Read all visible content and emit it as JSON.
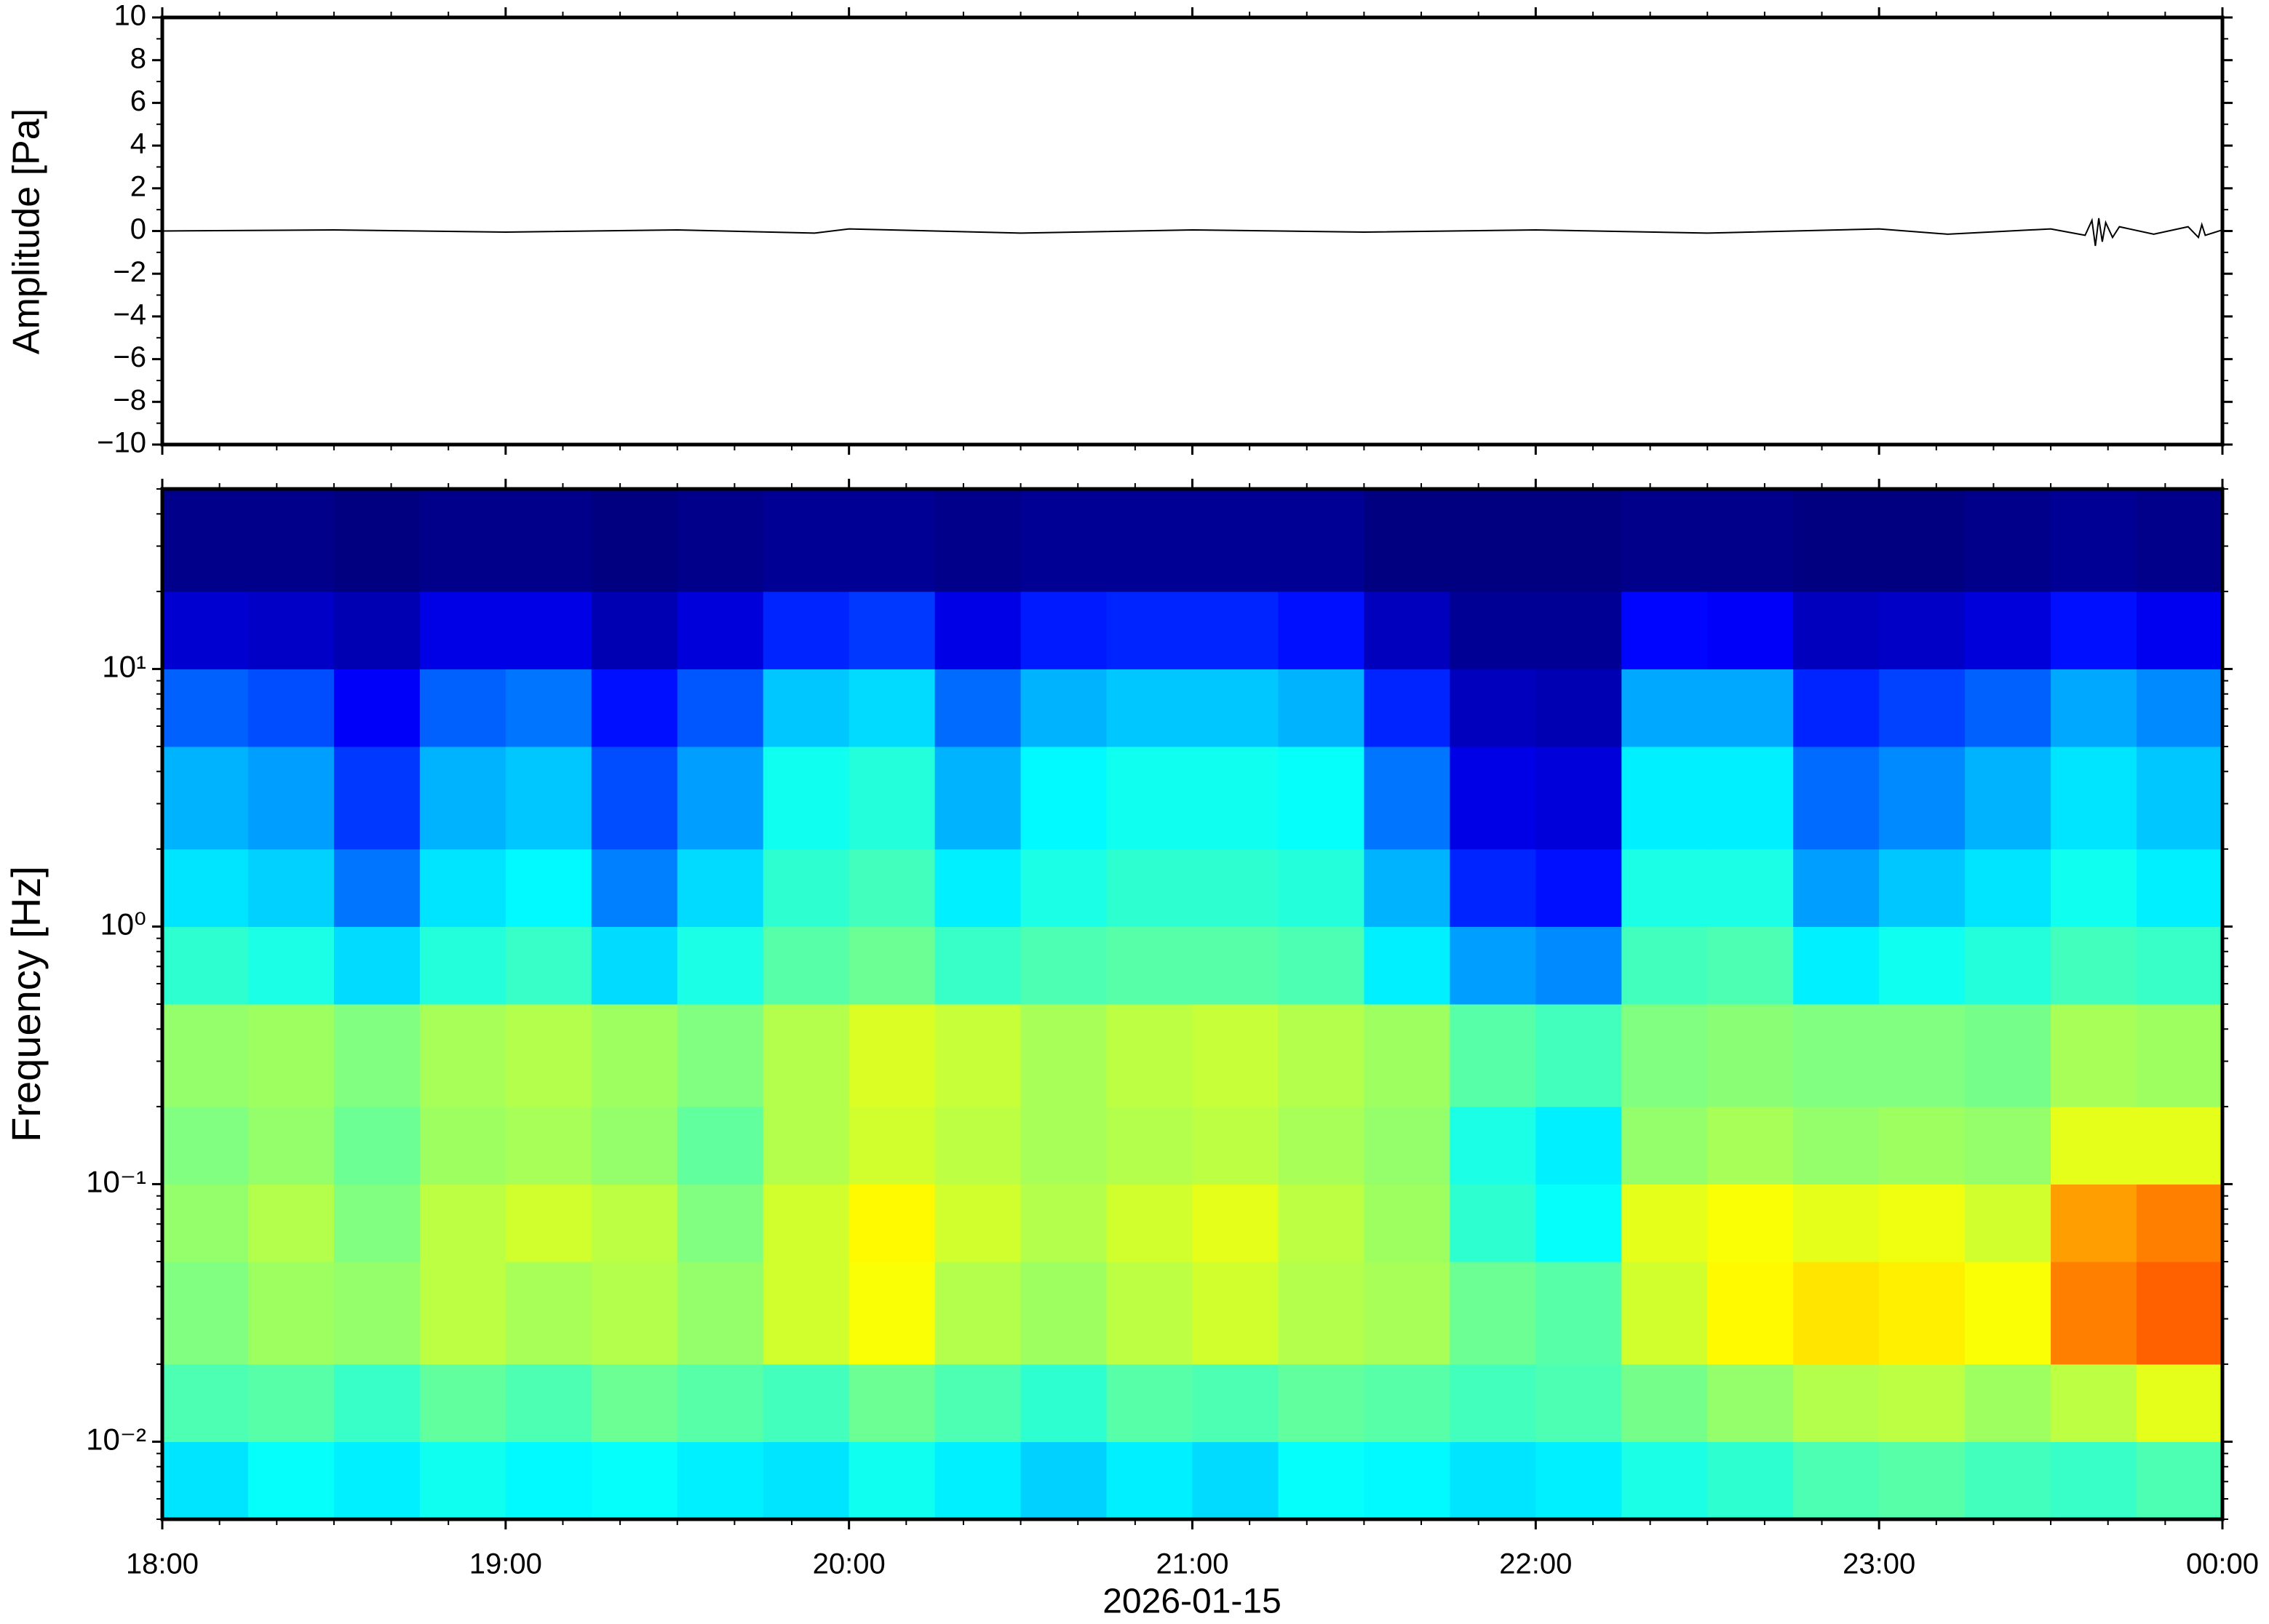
{
  "chart_data": [
    {
      "type": "line",
      "ylabel": "Amplitude [Pa]",
      "color": "#000000",
      "x": [
        18,
        18.5,
        19,
        19.5,
        19.9,
        20,
        20.5,
        21,
        21.5,
        22,
        22.5,
        23,
        23.2,
        23.5,
        23.6,
        23.62,
        23.63,
        23.64,
        23.65,
        23.66,
        23.68,
        23.7,
        23.8,
        23.9,
        23.93,
        23.94,
        23.95,
        24
      ],
      "values": [
        0,
        0.05,
        -0.05,
        0.05,
        -0.1,
        0.1,
        -0.1,
        0.05,
        -0.05,
        0.05,
        -0.1,
        0.1,
        -0.15,
        0.1,
        -0.2,
        0.5,
        -0.7,
        0.6,
        -0.5,
        0.4,
        -0.3,
        0.2,
        -0.15,
        0.2,
        -0.3,
        0.3,
        -0.2,
        0.05
      ],
      "xlim": [
        18,
        24
      ],
      "ylim": [
        -10,
        10
      ],
      "yticks": [
        {
          "value": -10,
          "label": "−10"
        },
        {
          "value": -8,
          "label": "−8"
        },
        {
          "value": -6,
          "label": "−6"
        },
        {
          "value": -4,
          "label": "−4"
        },
        {
          "value": -2,
          "label": "−2"
        },
        0,
        2,
        4,
        6,
        8,
        10
      ]
    },
    {
      "type": "heatmap",
      "ylabel": "Frequency [Hz]",
      "xlabel": "2026-01-15",
      "yscale": "log",
      "colormap": "jet",
      "xlim": [
        18,
        24
      ],
      "ylim": [
        0.005,
        50
      ],
      "xticks": [
        {
          "value": 18,
          "label": "18:00"
        },
        {
          "value": 19,
          "label": "19:00"
        },
        {
          "value": 20,
          "label": "20:00"
        },
        {
          "value": 21,
          "label": "21:00"
        },
        {
          "value": 22,
          "label": "22:00"
        },
        {
          "value": 23,
          "label": "23:00"
        },
        {
          "value": 24,
          "label": "00:00"
        }
      ],
      "yticks": [
        {
          "value": 0.01,
          "label": "10⁻²"
        },
        {
          "value": 0.1,
          "label": "10⁻¹"
        },
        {
          "value": 1,
          "label": "10⁰"
        },
        {
          "value": 10,
          "label": "10¹"
        }
      ],
      "xbins": [
        18,
        18.25,
        18.5,
        18.75,
        19,
        19.25,
        19.5,
        19.75,
        20,
        20.25,
        20.5,
        20.75,
        21,
        21.25,
        21.5,
        21.75,
        22,
        22.25,
        22.5,
        22.75,
        23,
        23.25,
        23.5,
        23.75,
        24
      ],
      "ybins": [
        0.005,
        0.01,
        0.02,
        0.05,
        0.1,
        0.2,
        0.5,
        1,
        2,
        5,
        10,
        20,
        50
      ],
      "zlim": [
        0,
        10
      ],
      "z": [
        [
          3.5,
          3.8,
          3.6,
          3.9,
          3.7,
          3.8,
          3.6,
          3.5,
          3.9,
          3.6,
          3.3,
          3.6,
          3.4,
          3.8,
          3.7,
          3.5,
          3.6,
          4.0,
          4.2,
          4.5,
          4.6,
          4.4,
          4.3,
          4.5
        ],
        [
          4.5,
          4.6,
          4.3,
          4.7,
          4.5,
          4.8,
          4.6,
          4.4,
          4.8,
          4.5,
          4.2,
          4.6,
          4.5,
          4.7,
          4.6,
          4.4,
          4.5,
          4.9,
          5.2,
          5.5,
          5.6,
          5.3,
          5.6,
          6.0
        ],
        [
          5.0,
          5.3,
          5.2,
          5.6,
          5.4,
          5.5,
          5.2,
          5.8,
          6.2,
          5.5,
          5.3,
          5.6,
          5.8,
          5.5,
          5.4,
          4.8,
          4.6,
          5.8,
          6.3,
          6.5,
          6.4,
          6.2,
          7.5,
          7.8
        ],
        [
          5.2,
          5.5,
          5.0,
          5.6,
          5.8,
          5.6,
          5.0,
          5.8,
          6.3,
          5.8,
          5.5,
          5.8,
          6.0,
          5.6,
          5.3,
          4.2,
          3.8,
          6.0,
          6.2,
          6.0,
          6.1,
          5.8,
          7.2,
          7.5
        ],
        [
          5.0,
          5.2,
          4.8,
          5.3,
          5.4,
          5.2,
          4.7,
          5.5,
          5.8,
          5.6,
          5.4,
          5.5,
          5.6,
          5.4,
          5.2,
          4.0,
          3.6,
          5.2,
          5.4,
          5.2,
          5.3,
          5.2,
          6.0,
          6.0
        ],
        [
          5.2,
          5.3,
          5.0,
          5.4,
          5.5,
          5.3,
          5.0,
          5.5,
          5.9,
          5.7,
          5.4,
          5.6,
          5.7,
          5.5,
          5.3,
          4.6,
          4.4,
          5.0,
          5.1,
          5.0,
          5.0,
          4.9,
          5.4,
          5.3
        ],
        [
          4.2,
          4.0,
          3.4,
          4.1,
          4.3,
          3.4,
          4.0,
          4.6,
          4.8,
          4.3,
          4.5,
          4.6,
          4.6,
          4.5,
          3.6,
          2.8,
          2.6,
          4.4,
          4.5,
          3.6,
          3.9,
          4.1,
          4.4,
          4.3
        ],
        [
          3.5,
          3.3,
          2.4,
          3.5,
          3.7,
          2.5,
          3.4,
          4.2,
          4.4,
          3.6,
          4.0,
          4.2,
          4.2,
          4.1,
          3.0,
          1.6,
          1.4,
          4.0,
          4.0,
          2.8,
          3.2,
          3.5,
          3.9,
          3.6
        ],
        [
          3.0,
          2.8,
          1.8,
          3.0,
          3.2,
          2.0,
          2.8,
          3.9,
          4.1,
          3.0,
          3.7,
          3.9,
          3.9,
          3.8,
          2.4,
          1.0,
          0.9,
          3.6,
          3.6,
          2.3,
          2.6,
          3.0,
          3.5,
          3.2
        ],
        [
          2.2,
          2.0,
          1.2,
          2.2,
          2.4,
          1.4,
          2.1,
          3.2,
          3.4,
          2.3,
          3.0,
          3.2,
          3.2,
          3.0,
          1.6,
          0.6,
          0.5,
          2.9,
          2.9,
          1.6,
          1.9,
          2.2,
          2.9,
          2.6
        ],
        [
          0.8,
          0.7,
          0.5,
          1.0,
          1.0,
          0.5,
          0.9,
          1.6,
          1.8,
          1.0,
          1.5,
          1.6,
          1.6,
          1.4,
          0.6,
          0.2,
          0.2,
          1.3,
          1.2,
          0.6,
          0.7,
          0.9,
          1.4,
          1.1
        ],
        [
          0.1,
          0.1,
          0,
          0.1,
          0.1,
          0,
          0.1,
          0.2,
          0.2,
          0.1,
          0.2,
          0.2,
          0.2,
          0.2,
          0,
          0,
          0,
          0.1,
          0.1,
          0,
          0,
          0.1,
          0.2,
          0.1
        ]
      ]
    }
  ]
}
